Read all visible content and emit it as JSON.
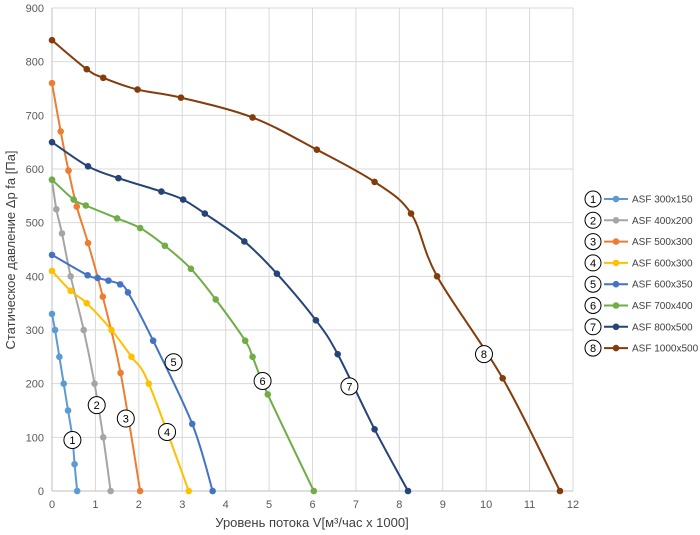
{
  "chart_data": {
    "type": "line",
    "xlabel": "Уровень потока V[м³/час х 1000]",
    "ylabel": "Статическое давление Δр fa [Па]",
    "xlim": [
      0,
      12
    ],
    "ylim": [
      0,
      900
    ],
    "x_ticks": [
      "0",
      "1",
      "2",
      "3",
      "4",
      "5",
      "6",
      "7",
      "8",
      "9",
      "10",
      "11",
      "12"
    ],
    "y_ticks": [
      "0",
      "100",
      "200",
      "300",
      "400",
      "500",
      "600",
      "700",
      "800",
      "900"
    ],
    "grid": true,
    "legend_position": "right",
    "series": [
      {
        "number": "1",
        "name": "ASF 300x150",
        "color": "#5b9bd5",
        "label_at": [
          0.47,
          95
        ],
        "points": [
          [
            0,
            330
          ],
          [
            0.07,
            300
          ],
          [
            0.17,
            250
          ],
          [
            0.27,
            200
          ],
          [
            0.37,
            150
          ],
          [
            0.47,
            100
          ],
          [
            0.52,
            50
          ],
          [
            0.58,
            0
          ]
        ]
      },
      {
        "number": "2",
        "name": "ASF 400x200",
        "color": "#a5a5a5",
        "label_at": [
          1.03,
          160
        ],
        "points": [
          [
            0,
            580
          ],
          [
            0.1,
            525
          ],
          [
            0.23,
            480
          ],
          [
            0.43,
            400
          ],
          [
            0.73,
            300
          ],
          [
            0.98,
            200
          ],
          [
            1.18,
            100
          ],
          [
            1.35,
            0
          ]
        ]
      },
      {
        "number": "3",
        "name": "ASF 500x300",
        "color": "#ed7d31",
        "label_at": [
          1.7,
          135
        ],
        "points": [
          [
            0,
            760
          ],
          [
            0.2,
            670
          ],
          [
            0.38,
            597
          ],
          [
            0.57,
            530
          ],
          [
            0.83,
            462
          ],
          [
            1.17,
            362
          ],
          [
            1.58,
            220
          ],
          [
            2.03,
            0
          ]
        ]
      },
      {
        "number": "4",
        "name": "ASF 600x300",
        "color": "#ffc000",
        "label_at": [
          2.65,
          110
        ],
        "points": [
          [
            0,
            410
          ],
          [
            0.43,
            373
          ],
          [
            0.8,
            350
          ],
          [
            1.37,
            300
          ],
          [
            1.83,
            250
          ],
          [
            2.23,
            200
          ],
          [
            3.15,
            0
          ]
        ]
      },
      {
        "number": "5",
        "name": "ASF 600x350",
        "color": "#4472c4",
        "label_at": [
          2.8,
          240
        ],
        "points": [
          [
            0,
            440
          ],
          [
            0.82,
            402
          ],
          [
            1.05,
            397
          ],
          [
            1.3,
            392
          ],
          [
            1.57,
            385
          ],
          [
            1.75,
            370
          ],
          [
            2.33,
            280
          ],
          [
            3.23,
            125
          ],
          [
            3.7,
            0
          ]
        ]
      },
      {
        "number": "6",
        "name": "ASF 700x400",
        "color": "#70ad47",
        "label_at": [
          4.85,
          205
        ],
        "points": [
          [
            0,
            580
          ],
          [
            0.5,
            543
          ],
          [
            0.78,
            532
          ],
          [
            1.5,
            508
          ],
          [
            2.03,
            490
          ],
          [
            2.6,
            457
          ],
          [
            3.2,
            414
          ],
          [
            3.77,
            357
          ],
          [
            4.45,
            280
          ],
          [
            4.62,
            250
          ],
          [
            4.97,
            180
          ],
          [
            6.03,
            0
          ]
        ]
      },
      {
        "number": "7",
        "name": "ASF 800x500",
        "color": "#264478",
        "label_at": [
          6.85,
          195
        ],
        "points": [
          [
            0,
            650
          ],
          [
            0.83,
            605
          ],
          [
            1.53,
            583
          ],
          [
            2.52,
            558
          ],
          [
            3.02,
            543
          ],
          [
            3.52,
            517
          ],
          [
            4.43,
            465
          ],
          [
            5.18,
            405
          ],
          [
            6.08,
            318
          ],
          [
            6.58,
            255
          ],
          [
            7.43,
            115
          ],
          [
            8.2,
            0
          ]
        ]
      },
      {
        "number": "8",
        "name": "ASF 1000x500",
        "color": "#843c0c",
        "label_at": [
          9.95,
          255
        ],
        "points": [
          [
            0,
            840
          ],
          [
            0.8,
            786
          ],
          [
            1.18,
            770
          ],
          [
            1.97,
            748
          ],
          [
            2.97,
            733
          ],
          [
            4.62,
            696
          ],
          [
            6.1,
            636
          ],
          [
            7.43,
            576
          ],
          [
            8.27,
            517
          ],
          [
            8.87,
            400
          ],
          [
            10.38,
            210
          ],
          [
            11.7,
            0
          ]
        ]
      }
    ]
  }
}
